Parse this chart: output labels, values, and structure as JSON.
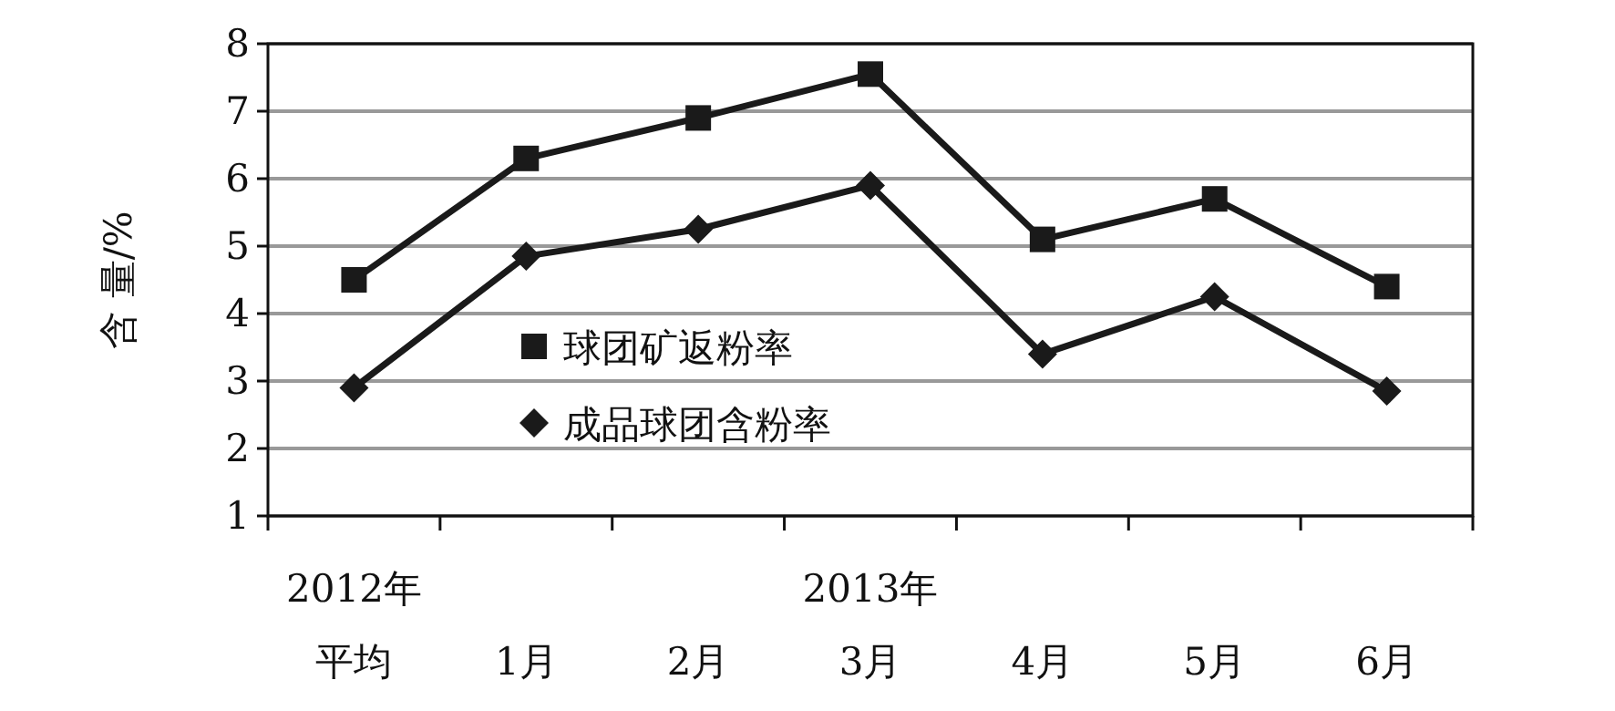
{
  "chart_data": {
    "type": "line",
    "ylabel": "含 量/%",
    "categories": [
      "平均",
      "1月",
      "2月",
      "3月",
      "4月",
      "5月",
      "6月"
    ],
    "annotations": [
      "2012年",
      "2013年"
    ],
    "series": [
      {
        "name": "球团矿返粉率",
        "color": "#1a1a1a",
        "marker": "square",
        "values": [
          4.5,
          6.3,
          6.9,
          7.55,
          5.1,
          5.7,
          4.4
        ]
      },
      {
        "name": "成品球团含粉率",
        "color": "#1a1a1a",
        "marker": "diamond",
        "values": [
          2.9,
          4.85,
          5.25,
          5.9,
          3.4,
          4.25,
          2.85
        ]
      }
    ],
    "ylim": [
      1,
      8
    ],
    "yticks": [
      1,
      2,
      3,
      4,
      5,
      6,
      7,
      8
    ],
    "grid": "y",
    "legend": "center",
    "line_style": "solid"
  }
}
